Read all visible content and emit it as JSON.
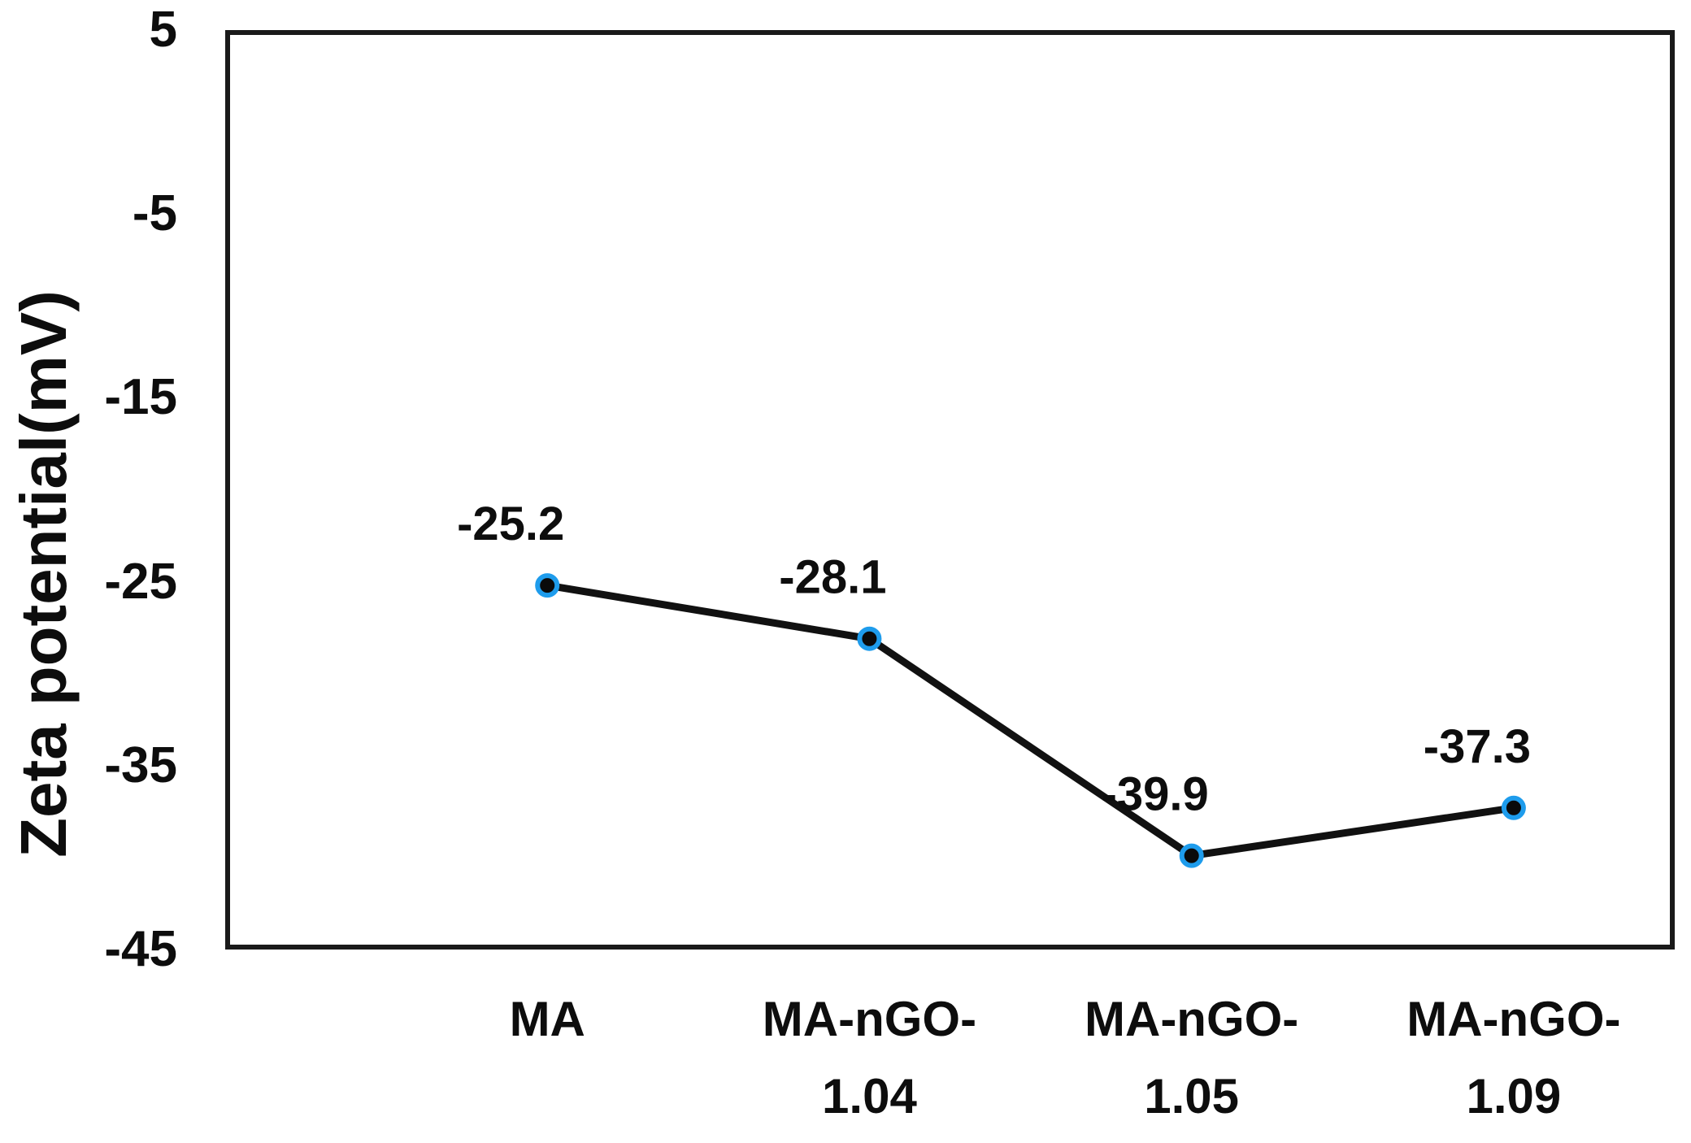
{
  "chart_data": {
    "type": "line",
    "title": "",
    "xlabel": "",
    "ylabel": "Zeta potential(mV)",
    "categories": [
      "MA",
      "MA-nGO-1.04",
      "MA-nGO-1.05",
      "MA-nGO-1.09"
    ],
    "category_label_lines": [
      [
        "MA"
      ],
      [
        "MA-nGO-",
        "1.04"
      ],
      [
        "MA-nGO-",
        "1.05"
      ],
      [
        "MA-nGO-",
        "1.09"
      ]
    ],
    "series": [
      {
        "name": "Zeta potential",
        "values": [
          -25.2,
          -28.1,
          -39.9,
          -37.3
        ]
      }
    ],
    "data_labels": [
      "-25.2",
      "-28.1",
      "-39.9",
      "-37.3"
    ],
    "yticks": [
      5,
      -5,
      -15,
      -25,
      -35,
      -45
    ],
    "ylim": [
      -45,
      5
    ],
    "grid": false,
    "legend": false,
    "colors": {
      "line": "#111111",
      "marker_fill": "#0a0a0a",
      "marker_ring": "#1e9cec",
      "plot_border": "#1a1a1a",
      "text": "#0d0d0d",
      "background": "#ffffff"
    }
  }
}
